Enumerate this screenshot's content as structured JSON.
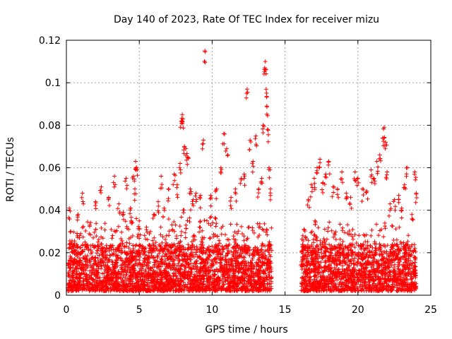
{
  "chart_data": {
    "type": "scatter",
    "title": "Day 140 of 2023, Rate Of TEC Index for receiver mizu",
    "xlabel": "GPS time / hours",
    "ylabel": "ROTI / TECUs",
    "xlim": [
      0,
      25
    ],
    "ylim": [
      0,
      0.12
    ],
    "x_ticks": [
      0,
      5,
      10,
      15,
      20,
      25
    ],
    "x_tick_labels": [
      "0",
      "5",
      "10",
      "15",
      "20",
      "25"
    ],
    "y_ticks": [
      0,
      0.02,
      0.04,
      0.06,
      0.08,
      0.1,
      0.12
    ],
    "y_tick_labels": [
      "0",
      "0.02",
      "0.04",
      "0.06",
      "0.08",
      "0.1",
      "0.12"
    ],
    "grid": true,
    "marker": "+",
    "color": "#ff0000",
    "data_gap_hours": [
      14.1,
      16.1
    ],
    "series": [
      {
        "name": "ROTI",
        "points": [
          [
            0.2,
            0.041
          ],
          [
            0.3,
            0.03
          ],
          [
            0.8,
            0.038
          ],
          [
            1.1,
            0.048
          ],
          [
            1.6,
            0.033
          ],
          [
            2.0,
            0.044
          ],
          [
            2.4,
            0.051
          ],
          [
            2.9,
            0.046
          ],
          [
            3.3,
            0.056
          ],
          [
            3.6,
            0.043
          ],
          [
            3.9,
            0.039
          ],
          [
            4.1,
            0.055
          ],
          [
            4.4,
            0.041
          ],
          [
            4.6,
            0.056
          ],
          [
            4.7,
            0.05
          ],
          [
            4.75,
            0.063
          ],
          [
            4.8,
            0.06
          ],
          [
            5.0,
            0.035
          ],
          [
            5.5,
            0.032
          ],
          [
            6.0,
            0.038
          ],
          [
            6.3,
            0.044
          ],
          [
            6.5,
            0.056
          ],
          [
            6.7,
            0.041
          ],
          [
            7.0,
            0.05
          ],
          [
            7.4,
            0.057
          ],
          [
            7.6,
            0.052
          ],
          [
            7.8,
            0.062
          ],
          [
            7.9,
            0.082
          ],
          [
            7.95,
            0.085
          ],
          [
            8.0,
            0.083
          ],
          [
            8.1,
            0.07
          ],
          [
            8.2,
            0.069
          ],
          [
            8.3,
            0.065
          ],
          [
            8.5,
            0.05
          ],
          [
            8.7,
            0.045
          ],
          [
            8.9,
            0.048
          ],
          [
            9.2,
            0.047
          ],
          [
            9.4,
            0.073
          ],
          [
            9.5,
            0.115
          ],
          [
            9.9,
            0.047
          ],
          [
            10.3,
            0.05
          ],
          [
            10.6,
            0.06
          ],
          [
            10.8,
            0.076
          ],
          [
            11.0,
            0.069
          ],
          [
            11.3,
            0.046
          ],
          [
            11.6,
            0.05
          ],
          [
            12.0,
            0.055
          ],
          [
            12.2,
            0.057
          ],
          [
            12.4,
            0.097
          ],
          [
            12.6,
            0.073
          ],
          [
            12.8,
            0.063
          ],
          [
            13.0,
            0.075
          ],
          [
            13.2,
            0.05
          ],
          [
            13.4,
            0.055
          ],
          [
            13.5,
            0.08
          ],
          [
            13.6,
            0.107
          ],
          [
            13.65,
            0.11
          ],
          [
            13.7,
            0.097
          ],
          [
            13.75,
            0.089
          ],
          [
            13.8,
            0.078
          ],
          [
            13.9,
            0.06
          ],
          [
            14.0,
            0.05
          ],
          [
            16.3,
            0.031
          ],
          [
            16.6,
            0.045
          ],
          [
            16.8,
            0.052
          ],
          [
            17.0,
            0.055
          ],
          [
            17.2,
            0.06
          ],
          [
            17.4,
            0.064
          ],
          [
            17.6,
            0.053
          ],
          [
            17.8,
            0.057
          ],
          [
            18.0,
            0.063
          ],
          [
            18.3,
            0.051
          ],
          [
            18.6,
            0.05
          ],
          [
            18.9,
            0.058
          ],
          [
            19.2,
            0.048
          ],
          [
            19.5,
            0.046
          ],
          [
            19.8,
            0.058
          ],
          [
            20.0,
            0.055
          ],
          [
            20.3,
            0.05
          ],
          [
            20.6,
            0.049
          ],
          [
            20.9,
            0.059
          ],
          [
            21.1,
            0.055
          ],
          [
            21.3,
            0.063
          ],
          [
            21.5,
            0.066
          ],
          [
            21.7,
            0.074
          ],
          [
            21.8,
            0.079
          ],
          [
            21.9,
            0.072
          ],
          [
            22.0,
            0.058
          ],
          [
            22.2,
            0.043
          ],
          [
            22.5,
            0.045
          ],
          [
            22.8,
            0.047
          ],
          [
            23.0,
            0.041
          ],
          [
            23.2,
            0.052
          ],
          [
            23.4,
            0.06
          ],
          [
            23.7,
            0.038
          ],
          [
            23.9,
            0.058
          ],
          [
            24.0,
            0.048
          ]
        ],
        "dense_band": {
          "segments": [
            [
              0.1,
              14.1
            ],
            [
              16.1,
              24.0
            ]
          ],
          "baseline_range": [
            0.002,
            0.024
          ],
          "upper_envelope": [
            [
              0.5,
              0.03
            ],
            [
              1.5,
              0.035
            ],
            [
              2.5,
              0.035
            ],
            [
              3.5,
              0.033
            ],
            [
              4.5,
              0.037
            ],
            [
              5.5,
              0.03
            ],
            [
              6.5,
              0.033
            ],
            [
              7.5,
              0.04
            ],
            [
              8.5,
              0.043
            ],
            [
              9.5,
              0.037
            ],
            [
              10.5,
              0.037
            ],
            [
              11.5,
              0.035
            ],
            [
              12.5,
              0.033
            ],
            [
              13.5,
              0.035
            ],
            [
              16.5,
              0.03
            ],
            [
              17.5,
              0.035
            ],
            [
              18.5,
              0.035
            ],
            [
              19.5,
              0.034
            ],
            [
              20.5,
              0.032
            ],
            [
              21.5,
              0.035
            ],
            [
              22.5,
              0.033
            ],
            [
              23.5,
              0.03
            ]
          ]
        }
      }
    ]
  }
}
